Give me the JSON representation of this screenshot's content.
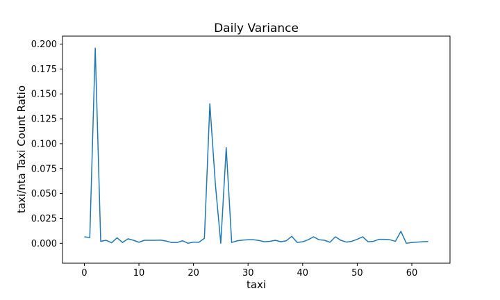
{
  "chart_data": {
    "type": "line",
    "title": "Daily Variance",
    "xlabel": "taxi",
    "ylabel": "taxi/nta Taxi Count Ratio",
    "xlim": [
      -4,
      67
    ],
    "ylim": [
      -0.02,
      0.208
    ],
    "xticks": [
      0,
      10,
      20,
      30,
      40,
      50,
      60
    ],
    "xtick_labels": [
      "0",
      "10",
      "20",
      "30",
      "40",
      "50",
      "60"
    ],
    "yticks": [
      0.0,
      0.025,
      0.05,
      0.075,
      0.1,
      0.125,
      0.15,
      0.175,
      0.2
    ],
    "ytick_labels": [
      "0.000",
      "0.025",
      "0.050",
      "0.075",
      "0.100",
      "0.125",
      "0.150",
      "0.175",
      "0.200"
    ],
    "grid": false,
    "color": "#1f77b4",
    "series": [
      {
        "x": [
          0,
          1,
          2,
          3,
          4,
          5,
          6,
          7,
          8,
          9,
          10,
          11,
          12,
          13,
          14,
          15,
          16,
          17,
          18,
          19,
          20,
          21,
          22,
          23,
          24,
          25,
          26,
          27,
          28,
          29,
          30,
          31,
          32,
          33,
          34,
          35,
          36,
          37,
          38,
          39,
          40,
          41,
          42,
          43,
          44,
          45,
          46,
          47,
          48,
          49,
          50,
          51,
          52,
          53,
          54,
          55,
          56,
          57,
          58,
          59,
          60,
          61,
          62,
          63
        ],
        "y": [
          0.0065,
          0.0058,
          0.196,
          0.002,
          0.003,
          0.0005,
          0.0055,
          0.0008,
          0.0045,
          0.003,
          0.001,
          0.003,
          0.003,
          0.003,
          0.0032,
          0.0022,
          0.0008,
          0.0008,
          0.0025,
          0.0,
          0.0012,
          0.001,
          0.005,
          0.14,
          0.06,
          0.0,
          0.096,
          0.0008,
          0.0025,
          0.0032,
          0.0035,
          0.0035,
          0.0028,
          0.0015,
          0.002,
          0.003,
          0.0015,
          0.0025,
          0.007,
          0.0008,
          0.0015,
          0.0035,
          0.0065,
          0.0035,
          0.003,
          0.001,
          0.0065,
          0.003,
          0.0012,
          0.002,
          0.004,
          0.0065,
          0.0015,
          0.002,
          0.004,
          0.004,
          0.0035,
          0.002,
          0.012,
          0.0,
          0.0008,
          0.0012,
          0.0015,
          0.0018
        ]
      }
    ]
  }
}
